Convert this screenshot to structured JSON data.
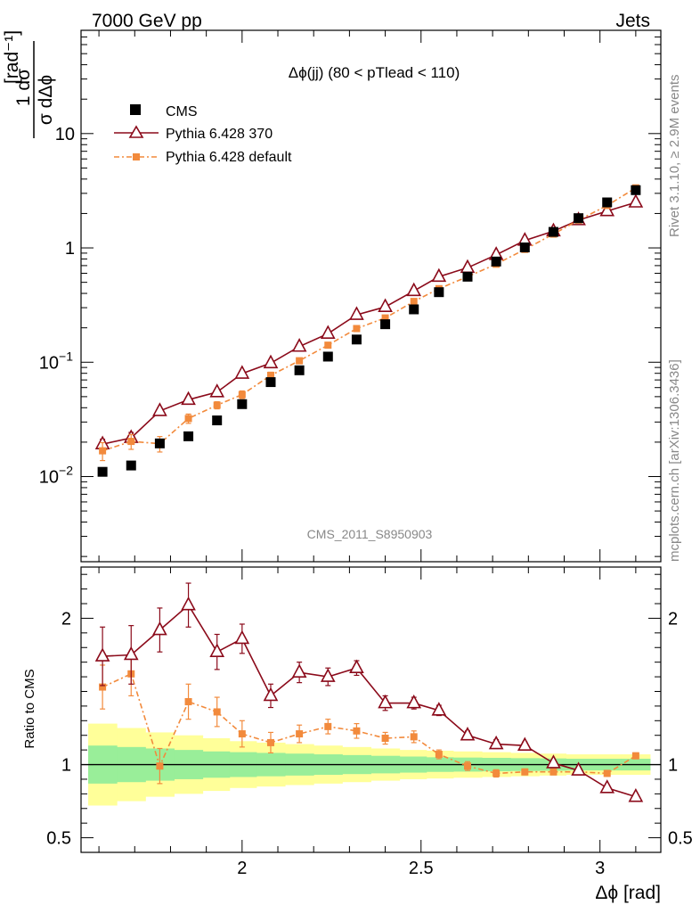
{
  "header": {
    "left": "7000 GeV pp",
    "right": "Jets"
  },
  "side_labels": {
    "rivet": "Rivet 3.1.10, ≥ 2.9M events",
    "mcplots": "mcplots.cern.ch [arXiv:1306.3436]"
  },
  "analysis_id": "CMS_2011_S8950903",
  "colors": {
    "cms": "#000000",
    "p370": "#8b0a1a",
    "pdef": "#f28a3c",
    "band_inner": "#99ee99",
    "band_outer": "#ffff99"
  },
  "chart_data": [
    {
      "type": "line",
      "panel": "main",
      "title": "Δϕ(jj) (80 < pTlead < 110)",
      "ylabel": "1/σ dσ/dΔϕ [rad⁻¹]",
      "yscale": "log",
      "xlim": [
        1.55,
        3.17
      ],
      "ylim": [
        0.0018,
        80
      ],
      "yticks": [
        {
          "v": 0.01,
          "base": "10",
          "exp": "−2"
        },
        {
          "v": 0.1,
          "base": "10",
          "exp": "−1"
        },
        {
          "v": 1,
          "base": "1",
          "exp": ""
        },
        {
          "v": 10,
          "base": "10",
          "exp": ""
        }
      ],
      "x": [
        1.61,
        1.69,
        1.77,
        1.85,
        1.93,
        2.0,
        2.08,
        2.16,
        2.24,
        2.32,
        2.4,
        2.48,
        2.55,
        2.63,
        2.71,
        2.79,
        2.87,
        2.94,
        3.02,
        3.1
      ],
      "series": [
        {
          "name": "CMS",
          "key": "cms",
          "marker": "square",
          "values": [
            0.011,
            0.0125,
            0.0195,
            0.0225,
            0.031,
            0.043,
            0.067,
            0.085,
            0.112,
            0.158,
            0.215,
            0.29,
            0.41,
            0.56,
            0.76,
            1.01,
            1.38,
            1.82,
            2.5,
            3.2
          ],
          "errors": [
            0,
            0,
            0,
            0,
            0,
            0,
            0,
            0,
            0,
            0,
            0,
            0,
            0,
            0,
            0,
            0,
            0,
            0,
            0,
            0
          ]
        },
        {
          "name": "Pythia 6.428 370",
          "key": "p370",
          "marker": "triangle",
          "values": [
            0.0192,
            0.0218,
            0.0375,
            0.047,
            0.0548,
            0.0795,
            0.0982,
            0.137,
            0.178,
            0.26,
            0.305,
            0.42,
            0.56,
            0.67,
            0.87,
            1.16,
            1.4,
            1.75,
            2.1,
            2.5
          ],
          "errors": [
            0.002,
            0.0025,
            0.0025,
            0.003,
            0.003,
            0.004,
            0.004,
            0.006,
            0.007,
            0.008,
            0.009,
            0.012,
            0.014,
            0.016,
            0.02,
            0.025,
            0.03,
            0.035,
            0.04,
            0.045
          ]
        },
        {
          "name": "Pythia 6.428 default",
          "key": "pdef",
          "marker": "square-small",
          "values": [
            0.0168,
            0.0203,
            0.0194,
            0.0322,
            0.0421,
            0.0521,
            0.0768,
            0.103,
            0.141,
            0.197,
            0.244,
            0.34,
            0.44,
            0.56,
            0.72,
            0.97,
            1.32,
            1.75,
            2.35,
            3.35
          ],
          "errors": [
            0.003,
            0.003,
            0.003,
            0.003,
            0.003,
            0.004,
            0.005,
            0.006,
            0.007,
            0.008,
            0.01,
            0.012,
            0.014,
            0.016,
            0.02,
            0.025,
            0.03,
            0.035,
            0.045,
            0.055
          ]
        }
      ]
    },
    {
      "type": "line",
      "panel": "ratio",
      "ylabel": "Ratio to CMS",
      "xlabel": "Δϕ [rad]",
      "xlim": [
        1.55,
        3.17
      ],
      "ylim": [
        0.4,
        2.35
      ],
      "xticks": [
        2,
        2.5,
        3
      ],
      "xtick_labels": [
        "2",
        "2.5",
        "3"
      ],
      "yticks": [
        0.5,
        1,
        2
      ],
      "ytick_labels": [
        "0.5",
        "1",
        "2"
      ],
      "x": [
        1.61,
        1.69,
        1.77,
        1.85,
        1.93,
        2.0,
        2.08,
        2.16,
        2.24,
        2.32,
        2.4,
        2.48,
        2.55,
        2.63,
        2.71,
        2.79,
        2.87,
        2.94,
        3.02,
        3.1
      ],
      "band_outer": [
        0.28,
        0.25,
        0.22,
        0.2,
        0.18,
        0.16,
        0.15,
        0.14,
        0.13,
        0.12,
        0.11,
        0.1,
        0.095,
        0.09,
        0.085,
        0.08,
        0.075,
        0.07,
        0.07,
        0.07
      ],
      "band_inner": [
        0.13,
        0.12,
        0.11,
        0.1,
        0.09,
        0.085,
        0.08,
        0.075,
        0.07,
        0.065,
        0.06,
        0.055,
        0.05,
        0.048,
        0.046,
        0.044,
        0.042,
        0.04,
        0.04,
        0.04
      ],
      "series": [
        {
          "name": "Pythia 6.428 370",
          "key": "p370",
          "marker": "triangle",
          "values": [
            1.74,
            1.75,
            1.92,
            2.09,
            1.77,
            1.86,
            1.47,
            1.63,
            1.6,
            1.66,
            1.42,
            1.42,
            1.37,
            1.2,
            1.14,
            1.13,
            1.01,
            0.96,
            0.84,
            0.78
          ],
          "errors": [
            0.2,
            0.2,
            0.15,
            0.15,
            0.12,
            0.1,
            0.08,
            0.07,
            0.06,
            0.05,
            0.05,
            0.04,
            0.035,
            0.03,
            0.03,
            0.025,
            0.02,
            0.02,
            0.02,
            0.02
          ]
        },
        {
          "name": "Pythia 6.428 default",
          "key": "pdef",
          "marker": "square-small",
          "values": [
            1.53,
            1.62,
            0.99,
            1.43,
            1.36,
            1.21,
            1.15,
            1.21,
            1.26,
            1.23,
            1.18,
            1.19,
            1.07,
            0.99,
            0.94,
            0.95,
            0.95,
            0.95,
            0.94,
            1.06
          ],
          "errors": [
            0.15,
            0.15,
            0.12,
            0.12,
            0.1,
            0.09,
            0.07,
            0.06,
            0.05,
            0.05,
            0.04,
            0.04,
            0.03,
            0.03,
            0.025,
            0.02,
            0.02,
            0.02,
            0.02,
            0.02
          ]
        }
      ]
    }
  ]
}
